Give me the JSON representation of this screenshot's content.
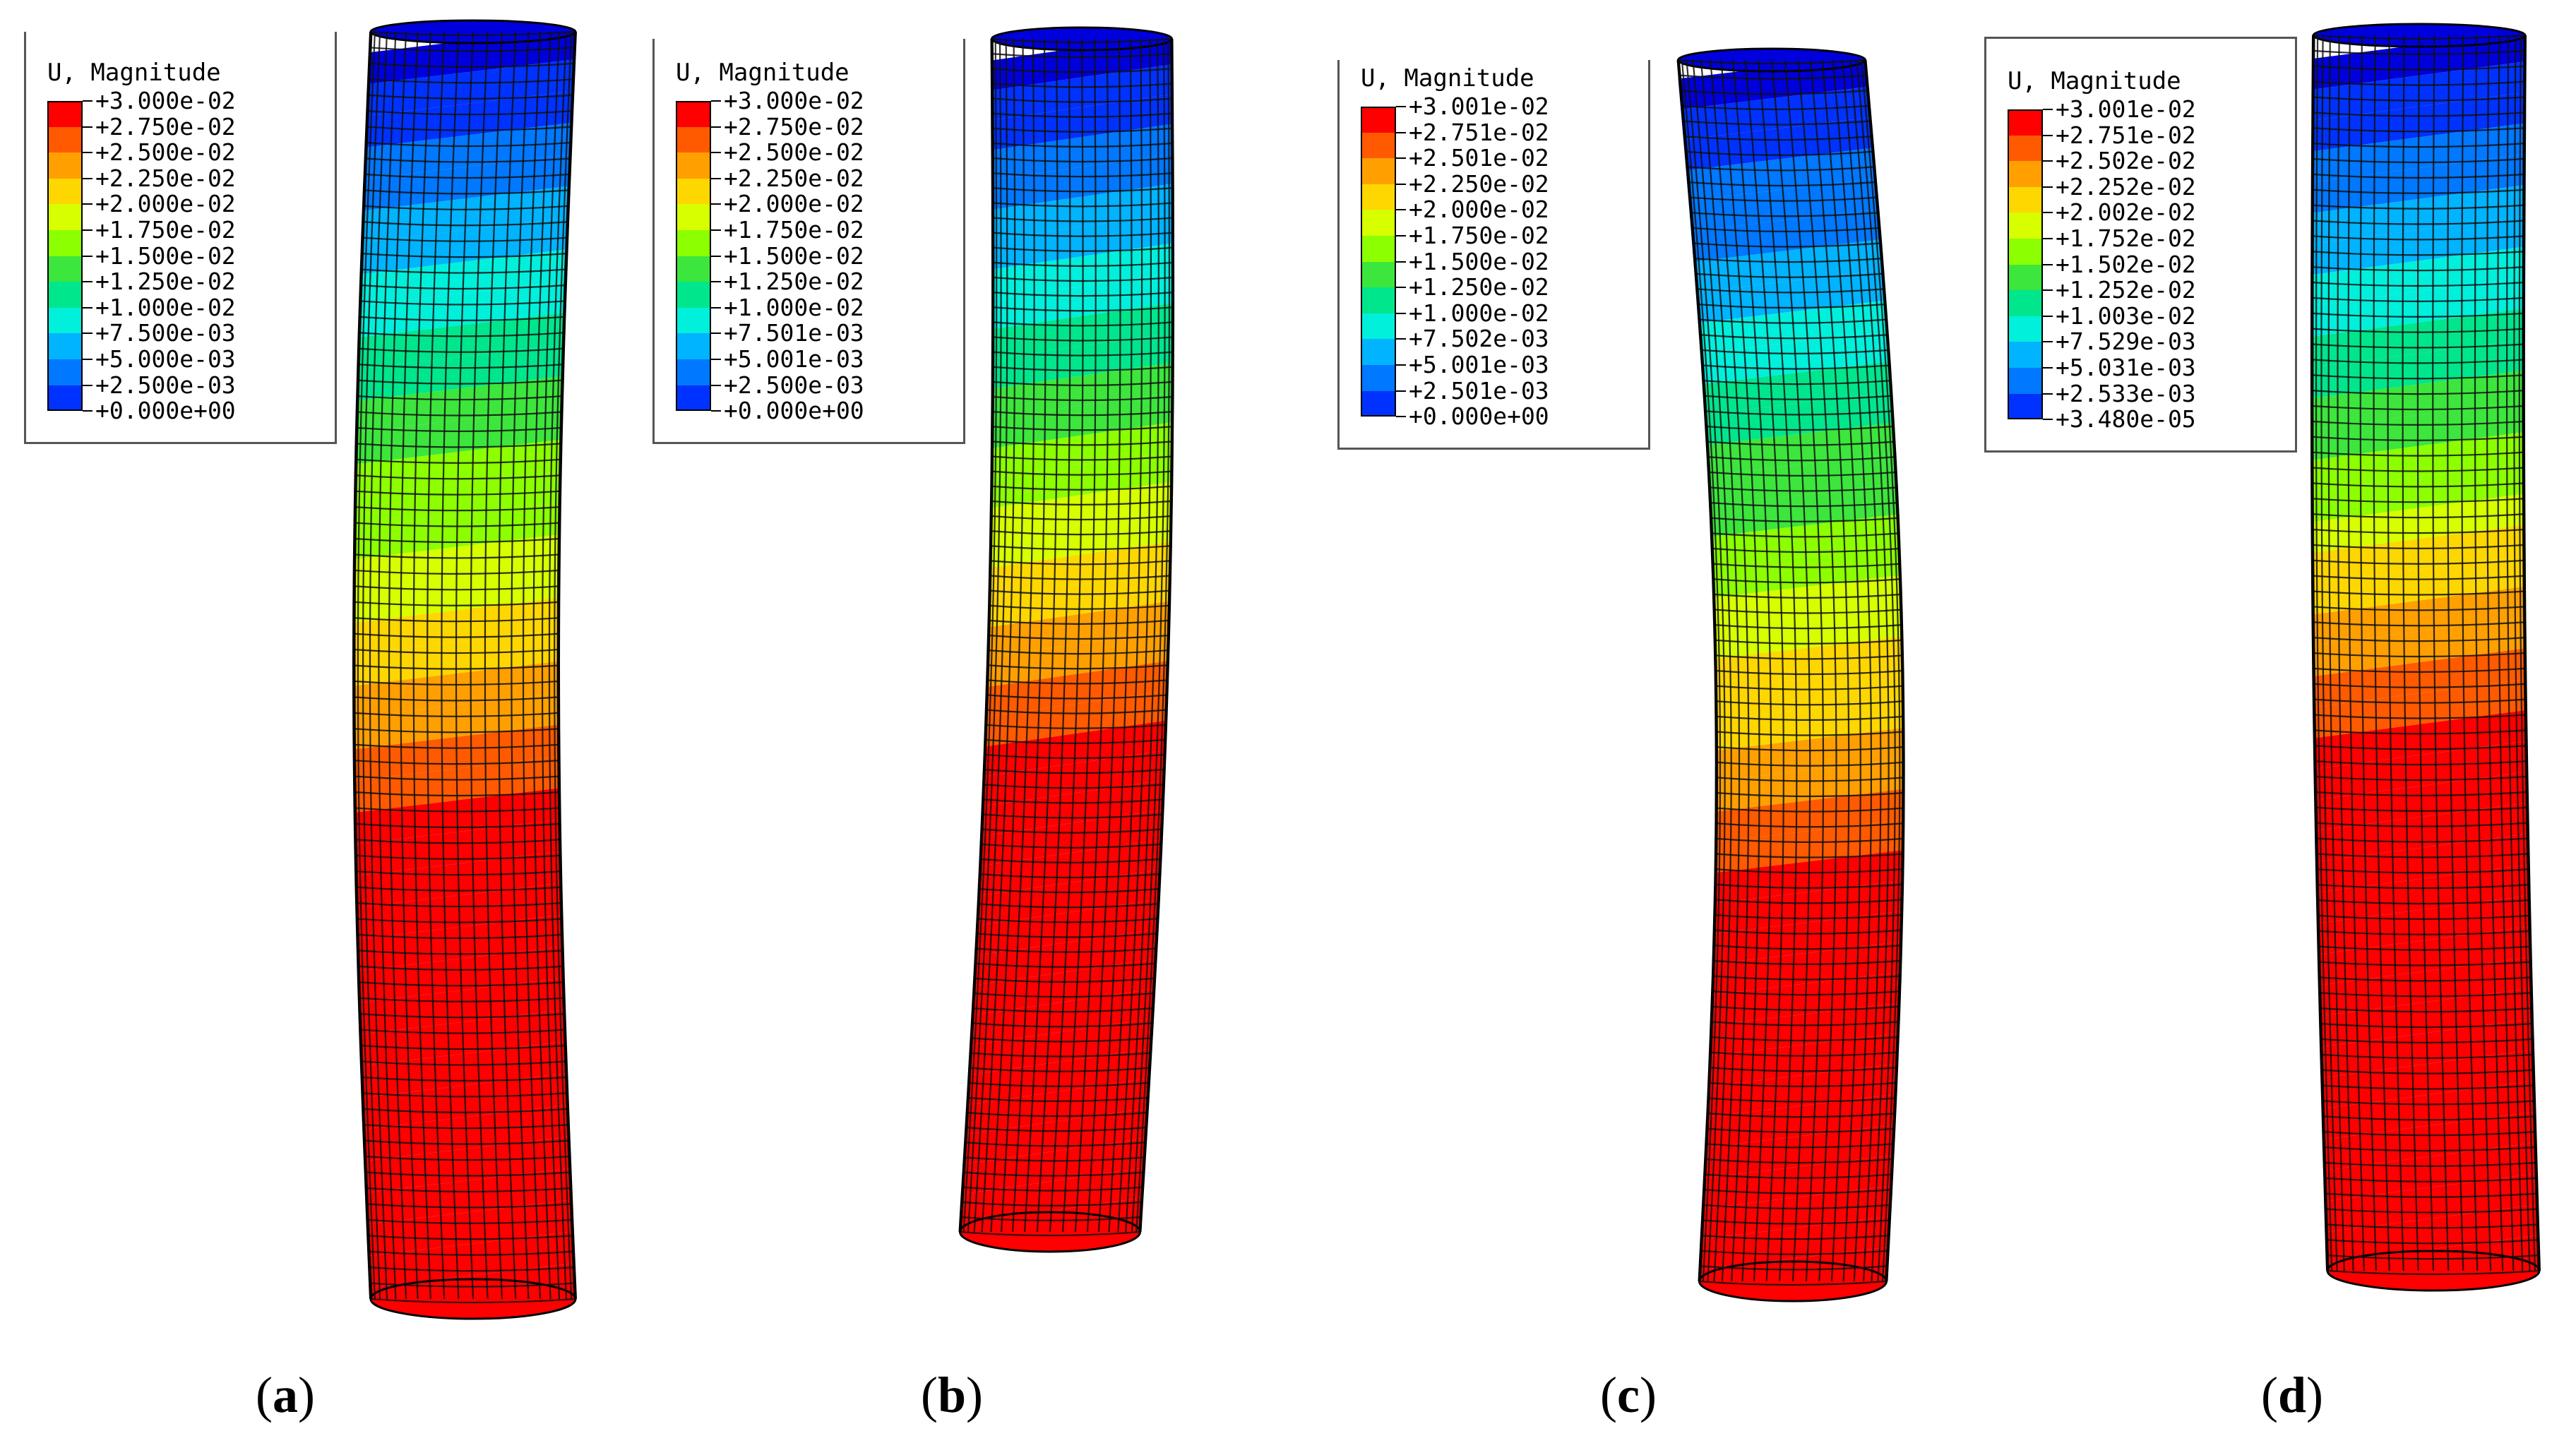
{
  "panels": [
    {
      "id": "a",
      "caption_open": "(",
      "caption_letter": "a",
      "caption_close": ")",
      "legend": {
        "title": "U, Magnitude",
        "labels": [
          "+3.000e-02",
          "+2.750e-02",
          "+2.500e-02",
          "+2.250e-02",
          "+2.000e-02",
          "+1.750e-02",
          "+1.500e-02",
          "+1.250e-02",
          "+1.000e-02",
          "+7.500e-03",
          "+5.000e-03",
          "+2.500e-03",
          "+0.000e+00"
        ]
      }
    },
    {
      "id": "b",
      "caption_open": "(",
      "caption_letter": "b",
      "caption_close": ")",
      "legend": {
        "title": "U, Magnitude",
        "labels": [
          "+3.000e-02",
          "+2.750e-02",
          "+2.500e-02",
          "+2.250e-02",
          "+2.000e-02",
          "+1.750e-02",
          "+1.500e-02",
          "+1.250e-02",
          "+1.000e-02",
          "+7.501e-03",
          "+5.001e-03",
          "+2.500e-03",
          "+0.000e+00"
        ]
      }
    },
    {
      "id": "c",
      "caption_open": "(",
      "caption_letter": "c",
      "caption_close": ")",
      "legend": {
        "title": "U, Magnitude",
        "labels": [
          "+3.001e-02",
          "+2.751e-02",
          "+2.501e-02",
          "+2.250e-02",
          "+2.000e-02",
          "+1.750e-02",
          "+1.500e-02",
          "+1.250e-02",
          "+1.000e-02",
          "+7.502e-03",
          "+5.001e-03",
          "+2.501e-03",
          "+0.000e+00"
        ]
      }
    },
    {
      "id": "d",
      "caption_open": "(",
      "caption_letter": "d",
      "caption_close": ")",
      "legend": {
        "title": "U, Magnitude",
        "labels": [
          "+3.001e-02",
          "+2.751e-02",
          "+2.502e-02",
          "+2.252e-02",
          "+2.002e-02",
          "+1.752e-02",
          "+1.502e-02",
          "+1.252e-02",
          "+1.003e-02",
          "+7.529e-03",
          "+5.031e-03",
          "+2.533e-03",
          "+3.480e-05"
        ]
      }
    }
  ],
  "colormap": [
    "#ff0000",
    "#ff5a00",
    "#ffa000",
    "#ffd700",
    "#d7ff00",
    "#8cff00",
    "#3ce63c",
    "#00e68c",
    "#00f0dc",
    "#00b4ff",
    "#0078ff",
    "#0032ff",
    "#0000dc"
  ]
}
